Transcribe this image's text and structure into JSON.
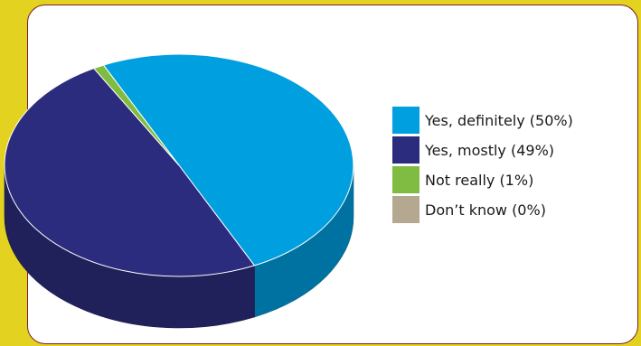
{
  "chart_data": {
    "type": "pie",
    "title": "",
    "slices": [
      {
        "label": "Yes, definitely (50%)",
        "value": 50,
        "color": "#009fdf"
      },
      {
        "label": "Yes, mostly (49%)",
        "value": 49,
        "color": "#2c2c7f"
      },
      {
        "label": "Not really (1%)",
        "value": 1,
        "color": "#80bc41"
      },
      {
        "label": "Don’t know (0%)",
        "value": 0,
        "color": "#b4a891"
      }
    ],
    "legend_position": "right",
    "style": "3d-pie"
  }
}
